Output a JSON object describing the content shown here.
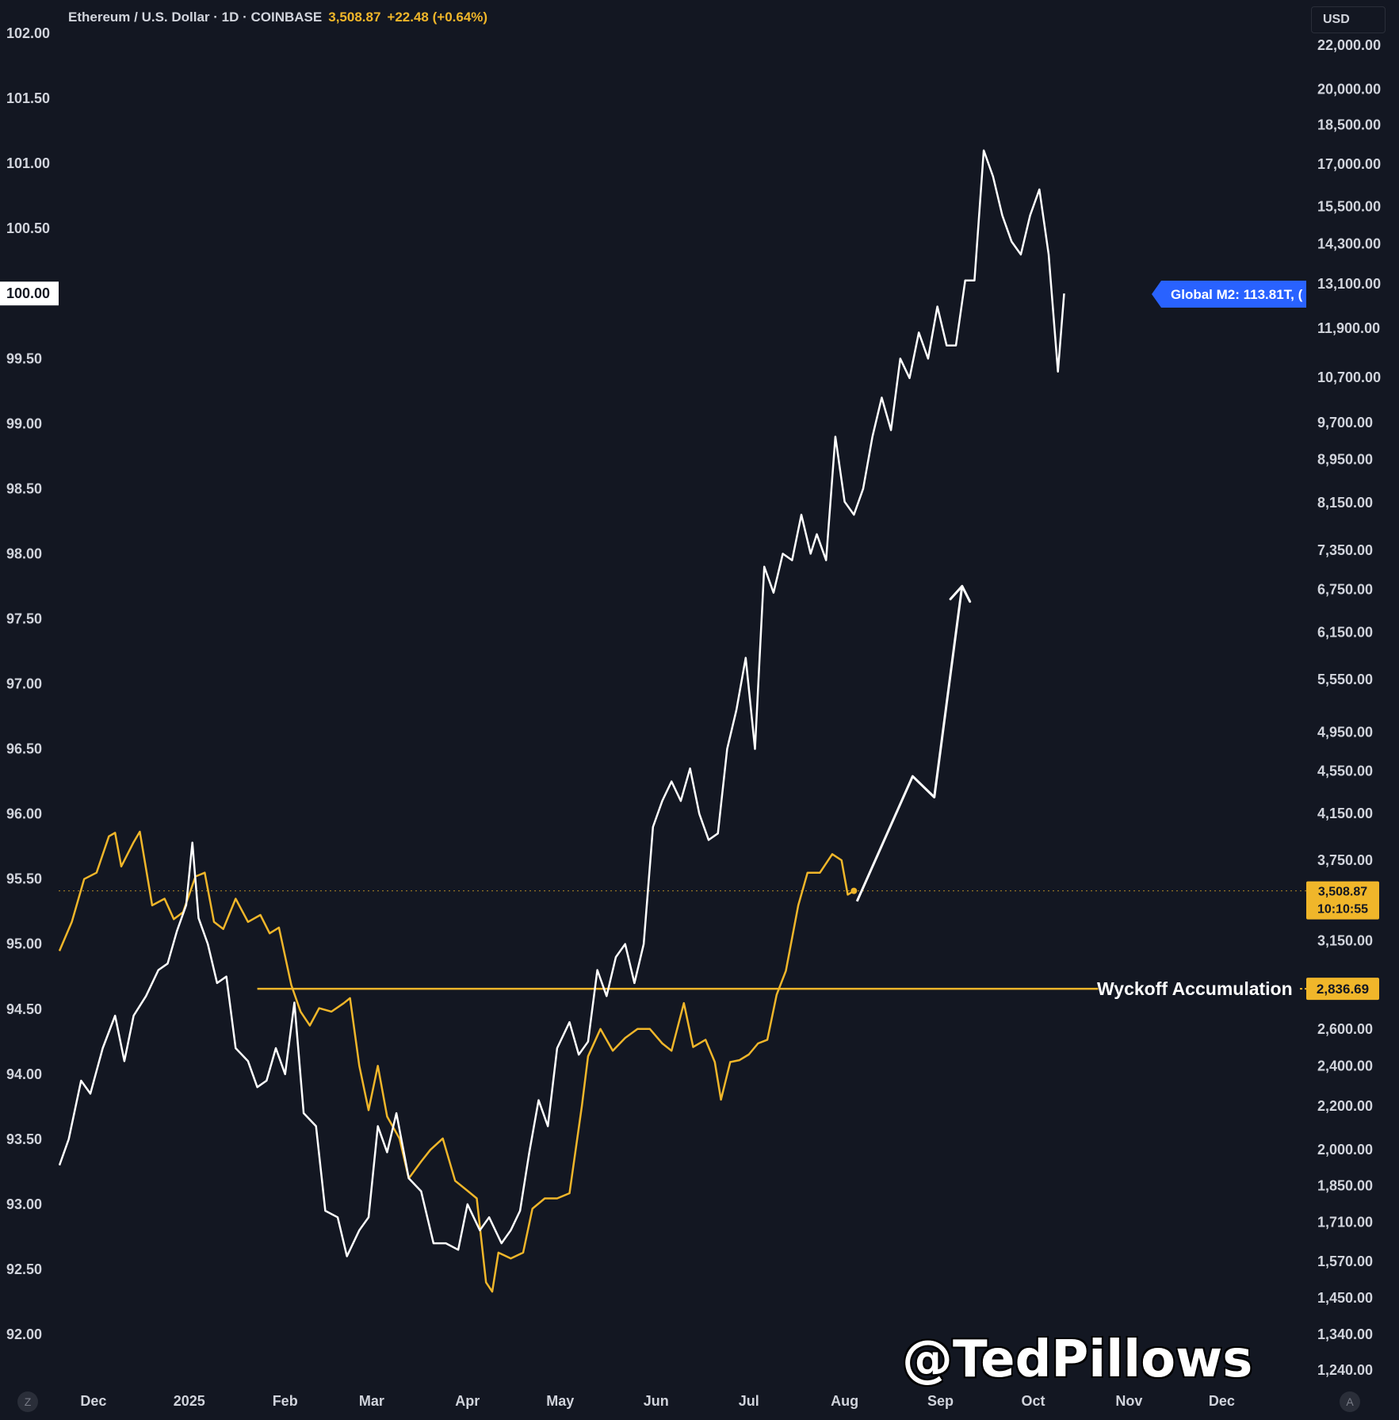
{
  "header": {
    "symbol": "Ethereum / U.S. Dollar · 1D · COINBASE",
    "price": "3,508.87",
    "change": "+22.48 (+0.64%)"
  },
  "currency_button": "USD",
  "watermark": "@TedPillows",
  "corner_left": "Z",
  "corner_right": "A",
  "colors": {
    "background": "#131722",
    "eth_line": "#f0b62a",
    "m2_line": "#ffffff",
    "m2_badge": "#2962ff",
    "price_badge": "#f0b62a"
  },
  "chart_data": {
    "type": "line",
    "left_axis": {
      "min": 92.0,
      "max": 102.0,
      "ticks": [
        "102.00",
        "101.50",
        "101.00",
        "100.50",
        "100.00",
        "99.50",
        "99.00",
        "98.50",
        "98.00",
        "97.50",
        "97.00",
        "96.50",
        "96.00",
        "95.50",
        "95.00",
        "94.50",
        "94.00",
        "93.50",
        "93.00",
        "92.50",
        "92.00"
      ],
      "highlight": "100.00"
    },
    "right_axis": {
      "scale": "log",
      "min": 1240,
      "max": 22000,
      "ticks": [
        "22,000.00",
        "20,000.00",
        "18,500.00",
        "17,000.00",
        "15,500.00",
        "14,300.00",
        "13,100.00",
        "11,900.00",
        "10,700.00",
        "9,700.00",
        "8,950.00",
        "8,150.00",
        "7,350.00",
        "6,750.00",
        "6,150.00",
        "5,550.00",
        "4,950.00",
        "4,550.00",
        "4,150.00",
        "3,750.00",
        "3,150.00",
        "2,600.00",
        "2,400.00",
        "2,200.00",
        "2,000.00",
        "1,850.00",
        "1,710.00",
        "1,570.00",
        "1,450.00",
        "1,340.00",
        "1,240.00"
      ]
    },
    "x_axis": {
      "labels": [
        "Dec",
        "2025",
        "Feb",
        "Mar",
        "Apr",
        "May",
        "Jun",
        "Jul",
        "Aug",
        "Sep",
        "Oct",
        "Nov",
        "Dec"
      ],
      "bold_label": "2025"
    },
    "series": [
      {
        "name": "Ethereum / U.S. Dollar",
        "axis": "right",
        "color": "#f0b62a",
        "points": [
          [
            "2024-11-20",
            3080
          ],
          [
            "2024-11-24",
            3280
          ],
          [
            "2024-11-28",
            3600
          ],
          [
            "2024-12-02",
            3650
          ],
          [
            "2024-12-06",
            3950
          ],
          [
            "2024-12-08",
            3980
          ],
          [
            "2024-12-10",
            3700
          ],
          [
            "2024-12-14",
            3900
          ],
          [
            "2024-12-16",
            3990
          ],
          [
            "2024-12-20",
            3400
          ],
          [
            "2024-12-24",
            3450
          ],
          [
            "2024-12-27",
            3300
          ],
          [
            "2024-12-30",
            3350
          ],
          [
            "2025-01-03",
            3620
          ],
          [
            "2025-01-06",
            3650
          ],
          [
            "2025-01-09",
            3280
          ],
          [
            "2025-01-12",
            3230
          ],
          [
            "2025-01-16",
            3450
          ],
          [
            "2025-01-20",
            3280
          ],
          [
            "2025-01-24",
            3330
          ],
          [
            "2025-01-27",
            3200
          ],
          [
            "2025-01-30",
            3240
          ],
          [
            "2025-02-03",
            2860
          ],
          [
            "2025-02-06",
            2700
          ],
          [
            "2025-02-09",
            2620
          ],
          [
            "2025-02-12",
            2720
          ],
          [
            "2025-02-16",
            2700
          ],
          [
            "2025-02-20",
            2750
          ],
          [
            "2025-02-22",
            2780
          ],
          [
            "2025-02-25",
            2400
          ],
          [
            "2025-02-28",
            2180
          ],
          [
            "2025-03-03",
            2400
          ],
          [
            "2025-03-06",
            2150
          ],
          [
            "2025-03-10",
            2050
          ],
          [
            "2025-03-13",
            1880
          ],
          [
            "2025-03-17",
            1950
          ],
          [
            "2025-03-20",
            2000
          ],
          [
            "2025-03-24",
            2050
          ],
          [
            "2025-03-28",
            1870
          ],
          [
            "2025-04-01",
            1830
          ],
          [
            "2025-04-04",
            1800
          ],
          [
            "2025-04-07",
            1500
          ],
          [
            "2025-04-09",
            1470
          ],
          [
            "2025-04-11",
            1600
          ],
          [
            "2025-04-15",
            1580
          ],
          [
            "2025-04-19",
            1600
          ],
          [
            "2025-04-22",
            1760
          ],
          [
            "2025-04-26",
            1800
          ],
          [
            "2025-04-30",
            1800
          ],
          [
            "2025-05-04",
            1820
          ],
          [
            "2025-05-08",
            2200
          ],
          [
            "2025-05-10",
            2450
          ],
          [
            "2025-05-14",
            2600
          ],
          [
            "2025-05-18",
            2480
          ],
          [
            "2025-05-22",
            2550
          ],
          [
            "2025-05-26",
            2600
          ],
          [
            "2025-05-30",
            2600
          ],
          [
            "2025-06-03",
            2520
          ],
          [
            "2025-06-06",
            2480
          ],
          [
            "2025-06-10",
            2750
          ],
          [
            "2025-06-13",
            2500
          ],
          [
            "2025-06-17",
            2540
          ],
          [
            "2025-06-20",
            2420
          ],
          [
            "2025-06-22",
            2230
          ],
          [
            "2025-06-25",
            2420
          ],
          [
            "2025-06-28",
            2430
          ],
          [
            "2025-07-01",
            2460
          ],
          [
            "2025-07-04",
            2520
          ],
          [
            "2025-07-07",
            2540
          ],
          [
            "2025-07-10",
            2800
          ],
          [
            "2025-07-13",
            2950
          ],
          [
            "2025-07-17",
            3400
          ],
          [
            "2025-07-20",
            3650
          ],
          [
            "2025-07-24",
            3650
          ],
          [
            "2025-07-28",
            3800
          ],
          [
            "2025-07-31",
            3750
          ],
          [
            "2025-08-02",
            3480
          ],
          [
            "2025-08-04",
            3508.87
          ]
        ]
      },
      {
        "name": "Global M2",
        "axis": "left",
        "color": "#ffffff",
        "points": [
          [
            "2024-11-20",
            93.3
          ],
          [
            "2024-11-23",
            93.5
          ],
          [
            "2024-11-27",
            93.95
          ],
          [
            "2024-11-30",
            93.85
          ],
          [
            "2024-12-04",
            94.2
          ],
          [
            "2024-12-08",
            94.45
          ],
          [
            "2024-12-11",
            94.1
          ],
          [
            "2024-12-14",
            94.45
          ],
          [
            "2024-12-18",
            94.6
          ],
          [
            "2024-12-22",
            94.8
          ],
          [
            "2024-12-25",
            94.85
          ],
          [
            "2024-12-28",
            95.1
          ],
          [
            "2024-12-31",
            95.3
          ],
          [
            "2025-01-02",
            95.78
          ],
          [
            "2025-01-04",
            95.2
          ],
          [
            "2025-01-07",
            95.0
          ],
          [
            "2025-01-10",
            94.7
          ],
          [
            "2025-01-13",
            94.75
          ],
          [
            "2025-01-16",
            94.2
          ],
          [
            "2025-01-20",
            94.1
          ],
          [
            "2025-01-23",
            93.9
          ],
          [
            "2025-01-26",
            93.95
          ],
          [
            "2025-01-29",
            94.2
          ],
          [
            "2025-02-01",
            94.0
          ],
          [
            "2025-02-04",
            94.55
          ],
          [
            "2025-02-07",
            93.7
          ],
          [
            "2025-02-11",
            93.6
          ],
          [
            "2025-02-14",
            92.95
          ],
          [
            "2025-02-18",
            92.9
          ],
          [
            "2025-02-21",
            92.6
          ],
          [
            "2025-02-25",
            92.8
          ],
          [
            "2025-02-28",
            92.9
          ],
          [
            "2025-03-03",
            93.6
          ],
          [
            "2025-03-06",
            93.4
          ],
          [
            "2025-03-09",
            93.7
          ],
          [
            "2025-03-13",
            93.2
          ],
          [
            "2025-03-17",
            93.1
          ],
          [
            "2025-03-21",
            92.7
          ],
          [
            "2025-03-25",
            92.7
          ],
          [
            "2025-03-29",
            92.65
          ],
          [
            "2025-04-01",
            93.0
          ],
          [
            "2025-04-05",
            92.8
          ],
          [
            "2025-04-08",
            92.9
          ],
          [
            "2025-04-12",
            92.7
          ],
          [
            "2025-04-15",
            92.8
          ],
          [
            "2025-04-18",
            92.95
          ],
          [
            "2025-04-21",
            93.4
          ],
          [
            "2025-04-24",
            93.8
          ],
          [
            "2025-04-27",
            93.6
          ],
          [
            "2025-04-30",
            94.2
          ],
          [
            "2025-05-04",
            94.4
          ],
          [
            "2025-05-07",
            94.15
          ],
          [
            "2025-05-10",
            94.25
          ],
          [
            "2025-05-13",
            94.8
          ],
          [
            "2025-05-16",
            94.6
          ],
          [
            "2025-05-19",
            94.9
          ],
          [
            "2025-05-22",
            95.0
          ],
          [
            "2025-05-25",
            94.7
          ],
          [
            "2025-05-28",
            95.0
          ],
          [
            "2025-05-31",
            95.9
          ],
          [
            "2025-06-03",
            96.1
          ],
          [
            "2025-06-06",
            96.25
          ],
          [
            "2025-06-09",
            96.1
          ],
          [
            "2025-06-12",
            96.35
          ],
          [
            "2025-06-15",
            96.0
          ],
          [
            "2025-06-18",
            95.8
          ],
          [
            "2025-06-21",
            95.85
          ],
          [
            "2025-06-24",
            96.5
          ],
          [
            "2025-06-27",
            96.8
          ],
          [
            "2025-06-30",
            97.2
          ],
          [
            "2025-07-03",
            96.5
          ],
          [
            "2025-07-06",
            97.9
          ],
          [
            "2025-07-09",
            97.7
          ],
          [
            "2025-07-12",
            98.0
          ],
          [
            "2025-07-15",
            97.95
          ],
          [
            "2025-07-18",
            98.3
          ],
          [
            "2025-07-21",
            98.0
          ],
          [
            "2025-07-23",
            98.15
          ],
          [
            "2025-07-26",
            97.95
          ],
          [
            "2025-07-29",
            98.9
          ],
          [
            "2025-08-01",
            98.4
          ],
          [
            "2025-08-04",
            98.3
          ],
          [
            "2025-08-07",
            98.5
          ],
          [
            "2025-08-10",
            98.9
          ],
          [
            "2025-08-13",
            99.2
          ],
          [
            "2025-08-16",
            98.95
          ],
          [
            "2025-08-19",
            99.5
          ],
          [
            "2025-08-22",
            99.35
          ],
          [
            "2025-08-25",
            99.7
          ],
          [
            "2025-08-28",
            99.5
          ],
          [
            "2025-08-31",
            99.9
          ],
          [
            "2025-09-03",
            99.6
          ],
          [
            "2025-09-06",
            99.6
          ],
          [
            "2025-09-09",
            100.1
          ],
          [
            "2025-09-12",
            100.1
          ],
          [
            "2025-09-15",
            101.1
          ],
          [
            "2025-09-18",
            100.9
          ],
          [
            "2025-09-21",
            100.6
          ],
          [
            "2025-09-24",
            100.4
          ],
          [
            "2025-09-27",
            100.3
          ],
          [
            "2025-09-30",
            100.6
          ],
          [
            "2025-10-03",
            100.8
          ],
          [
            "2025-10-06",
            100.3
          ],
          [
            "2025-10-09",
            99.4
          ],
          [
            "2025-10-11",
            100.0
          ]
        ]
      }
    ],
    "reference_line": {
      "label": "Wyckoff Accumulation",
      "value": 2836.69,
      "value_label": "2,836.69",
      "axis": "right",
      "from": "2025-01-23",
      "to": "2025-10-22"
    },
    "last_price_line": {
      "value": 3508.87,
      "value_label": "3,508.87",
      "countdown": "10:10:55"
    },
    "projection_arrow": {
      "axis": "right",
      "points": [
        [
          "2025-08-05",
          3430
        ],
        [
          "2025-08-23",
          4500
        ],
        [
          "2025-08-30",
          4300
        ],
        [
          "2025-09-08",
          6800
        ]
      ]
    },
    "m2_label": "Global M2: 113.81T, (",
    "legend": "none",
    "grid": false
  }
}
